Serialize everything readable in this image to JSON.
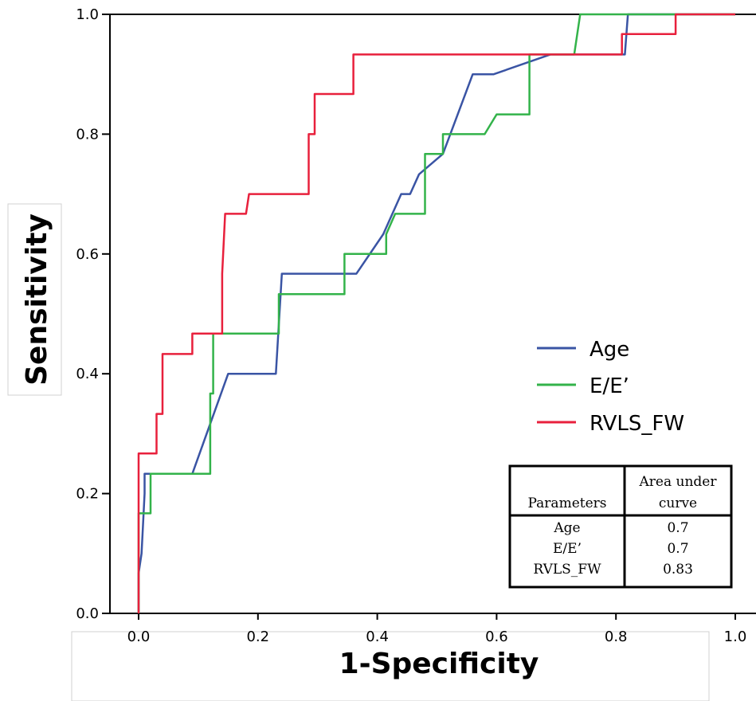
{
  "chart_data": {
    "type": "line",
    "title": "",
    "xlabel": "1-Specificity",
    "ylabel": "Sensitivity",
    "xlim": [
      0.0,
      1.0
    ],
    "ylim": [
      0.0,
      1.0
    ],
    "xticks": [
      "0.0",
      "0.2",
      "0.4",
      "0.6",
      "0.8",
      "1.0"
    ],
    "yticks": [
      "0.0",
      "0.2",
      "0.4",
      "0.6",
      "0.8",
      "1.0"
    ],
    "grid": false,
    "legend_position": "right-middle",
    "series": [
      {
        "name": "Age",
        "color": "#3a54a4",
        "points": [
          [
            0,
            0
          ],
          [
            0,
            0.067
          ],
          [
            0.005,
            0.1
          ],
          [
            0.01,
            0.2
          ],
          [
            0.01,
            0.233
          ],
          [
            0.09,
            0.233
          ],
          [
            0.15,
            0.4
          ],
          [
            0.23,
            0.4
          ],
          [
            0.24,
            0.567
          ],
          [
            0.365,
            0.567
          ],
          [
            0.41,
            0.633
          ],
          [
            0.44,
            0.7
          ],
          [
            0.455,
            0.7
          ],
          [
            0.47,
            0.733
          ],
          [
            0.51,
            0.767
          ],
          [
            0.56,
            0.9
          ],
          [
            0.595,
            0.9
          ],
          [
            0.69,
            0.933
          ],
          [
            0.815,
            0.933
          ],
          [
            0.82,
            1.0
          ],
          [
            1.0,
            1.0
          ]
        ]
      },
      {
        "name": "E/E’",
        "color": "#33b34a",
        "points": [
          [
            0,
            0
          ],
          [
            0,
            0.167
          ],
          [
            0.02,
            0.167
          ],
          [
            0.02,
            0.233
          ],
          [
            0.12,
            0.233
          ],
          [
            0.12,
            0.367
          ],
          [
            0.125,
            0.367
          ],
          [
            0.125,
            0.467
          ],
          [
            0.235,
            0.467
          ],
          [
            0.235,
            0.533
          ],
          [
            0.345,
            0.533
          ],
          [
            0.345,
            0.6
          ],
          [
            0.415,
            0.6
          ],
          [
            0.415,
            0.633
          ],
          [
            0.43,
            0.667
          ],
          [
            0.48,
            0.667
          ],
          [
            0.48,
            0.767
          ],
          [
            0.51,
            0.767
          ],
          [
            0.51,
            0.8
          ],
          [
            0.58,
            0.8
          ],
          [
            0.6,
            0.833
          ],
          [
            0.655,
            0.833
          ],
          [
            0.655,
            0.933
          ],
          [
            0.73,
            0.933
          ],
          [
            0.74,
            1.0
          ],
          [
            1.0,
            1.0
          ]
        ]
      },
      {
        "name": "RVLS_FW",
        "color": "#e8203c",
        "points": [
          [
            0,
            0
          ],
          [
            0,
            0.267
          ],
          [
            0.03,
            0.267
          ],
          [
            0.03,
            0.333
          ],
          [
            0.04,
            0.333
          ],
          [
            0.04,
            0.433
          ],
          [
            0.09,
            0.433
          ],
          [
            0.09,
            0.467
          ],
          [
            0.14,
            0.467
          ],
          [
            0.14,
            0.567
          ],
          [
            0.145,
            0.667
          ],
          [
            0.18,
            0.667
          ],
          [
            0.185,
            0.7
          ],
          [
            0.285,
            0.7
          ],
          [
            0.285,
            0.8
          ],
          [
            0.295,
            0.8
          ],
          [
            0.295,
            0.867
          ],
          [
            0.36,
            0.867
          ],
          [
            0.36,
            0.933
          ],
          [
            0.81,
            0.933
          ],
          [
            0.81,
            0.967
          ],
          [
            0.9,
            0.967
          ],
          [
            0.9,
            1.0
          ],
          [
            1.0,
            1.0
          ]
        ]
      }
    ],
    "table": {
      "headers": [
        "Parameters",
        "Area under",
        "curve"
      ],
      "rows": [
        [
          "Age",
          "0.7"
        ],
        [
          "E/E’",
          "0.7"
        ],
        [
          "RVLS_FW",
          "0.83"
        ]
      ]
    }
  }
}
